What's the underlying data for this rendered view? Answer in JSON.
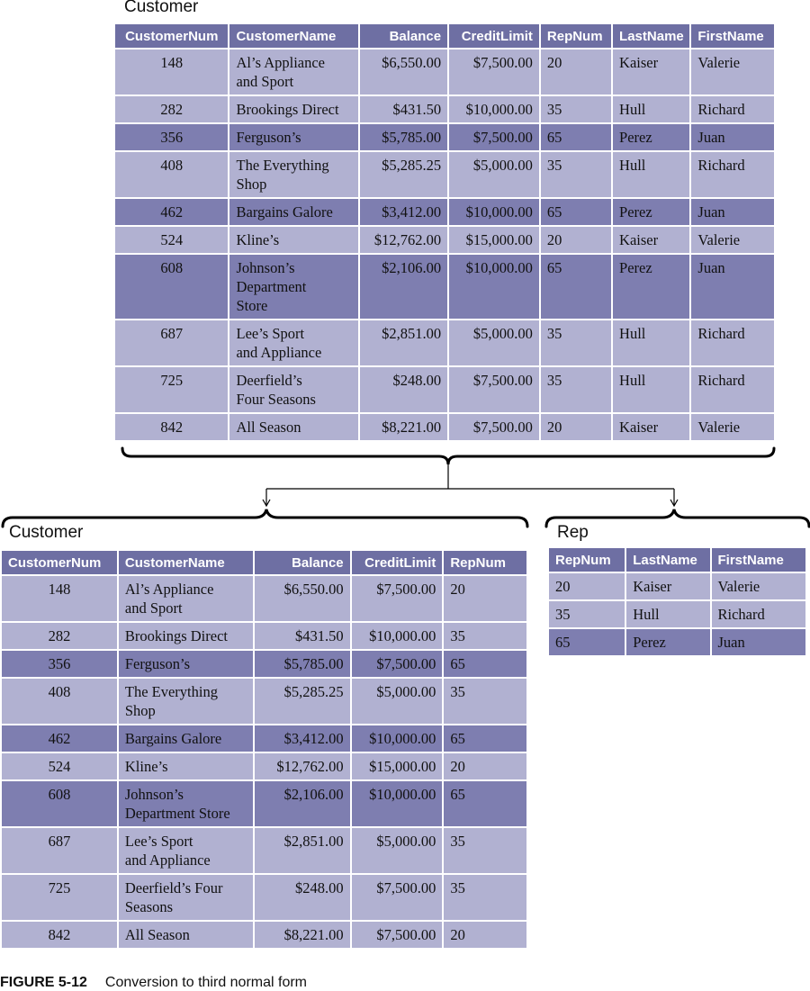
{
  "top_table": {
    "title": "Customer",
    "columns": [
      "CustomerNum",
      "CustomerName",
      "Balance",
      "CreditLimit",
      "RepNum",
      "LastName",
      "FirstName"
    ],
    "rows": [
      [
        "148",
        "Al’s Appliance\nand Sport",
        "$6,550.00",
        "$7,500.00",
        "20",
        "Kaiser",
        "Valerie"
      ],
      [
        "282",
        "Brookings Direct",
        "$431.50",
        "$10,000.00",
        "35",
        "Hull",
        "Richard"
      ],
      [
        "356",
        "Ferguson’s",
        "$5,785.00",
        "$7,500.00",
        "65",
        "Perez",
        "Juan"
      ],
      [
        "408",
        "The Everything\nShop",
        "$5,285.25",
        "$5,000.00",
        "35",
        "Hull",
        "Richard"
      ],
      [
        "462",
        "Bargains Galore",
        "$3,412.00",
        "$10,000.00",
        "65",
        "Perez",
        "Juan"
      ],
      [
        "524",
        "Kline’s",
        "$12,762.00",
        "$15,000.00",
        "20",
        "Kaiser",
        "Valerie"
      ],
      [
        "608",
        "Johnson’s\nDepartment\nStore",
        "$2,106.00",
        "$10,000.00",
        "65",
        "Perez",
        "Juan"
      ],
      [
        "687",
        "Lee’s Sport\nand Appliance",
        "$2,851.00",
        "$5,000.00",
        "35",
        "Hull",
        "Richard"
      ],
      [
        "725",
        "Deerfield’s\nFour Seasons",
        "$248.00",
        "$7,500.00",
        "35",
        "Hull",
        "Richard"
      ],
      [
        "842",
        "All Season",
        "$8,221.00",
        "$7,500.00",
        "20",
        "Kaiser",
        "Valerie"
      ]
    ]
  },
  "customer_table": {
    "title": "Customer",
    "columns": [
      "CustomerNum",
      "CustomerName",
      "Balance",
      "CreditLimit",
      "RepNum"
    ],
    "rows": [
      [
        "148",
        "Al’s Appliance\nand Sport",
        "$6,550.00",
        "$7,500.00",
        "20"
      ],
      [
        "282",
        "Brookings Direct",
        "$431.50",
        "$10,000.00",
        "35"
      ],
      [
        "356",
        "Ferguson’s",
        "$5,785.00",
        "$7,500.00",
        "65"
      ],
      [
        "408",
        "The Everything\nShop",
        "$5,285.25",
        "$5,000.00",
        "35"
      ],
      [
        "462",
        "Bargains Galore",
        "$3,412.00",
        "$10,000.00",
        "65"
      ],
      [
        "524",
        "Kline’s",
        "$12,762.00",
        "$15,000.00",
        "20"
      ],
      [
        "608",
        "Johnson’s\nDepartment Store",
        "$2,106.00",
        "$10,000.00",
        "65"
      ],
      [
        "687",
        "Lee’s Sport\nand Appliance",
        "$2,851.00",
        "$5,000.00",
        "35"
      ],
      [
        "725",
        "Deerfield’s Four\nSeasons",
        "$248.00",
        "$7,500.00",
        "35"
      ],
      [
        "842",
        "All Season",
        "$8,221.00",
        "$7,500.00",
        "20"
      ]
    ]
  },
  "rep_table": {
    "title": "Rep",
    "columns": [
      "RepNum",
      "LastName",
      "FirstName"
    ],
    "rows": [
      [
        "20",
        "Kaiser",
        "Valerie"
      ],
      [
        "35",
        "Hull",
        "Richard"
      ],
      [
        "65",
        "Perez",
        "Juan"
      ]
    ]
  },
  "figure": {
    "label": "FIGURE 5-12",
    "text": "Conversion to third normal form"
  }
}
